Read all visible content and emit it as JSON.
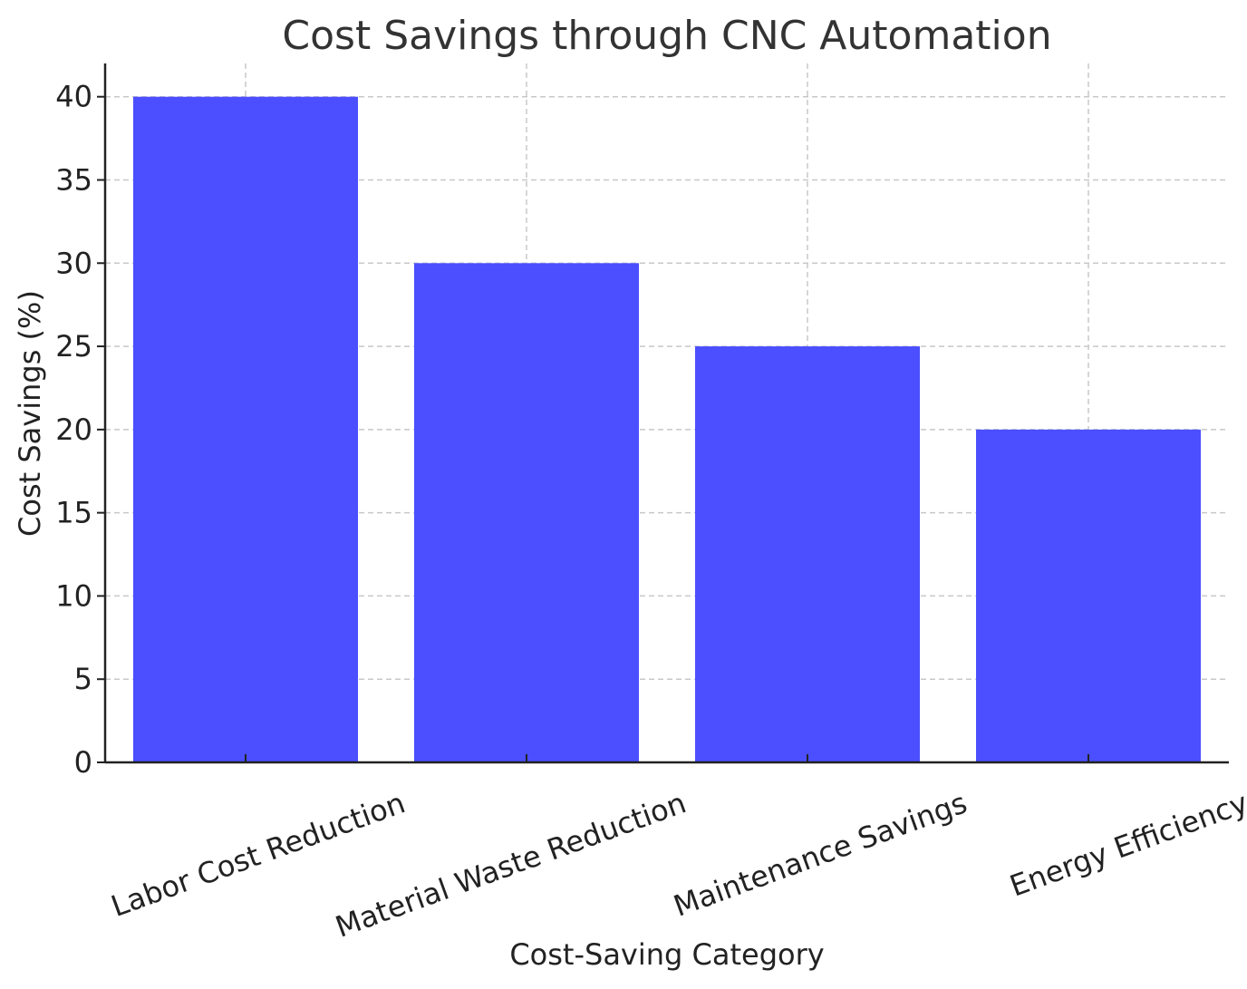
{
  "chart_data": {
    "type": "bar",
    "title": "Cost Savings through CNC Automation",
    "xlabel": "Cost-Saving Category",
    "ylabel": "Cost Savings (%)",
    "categories": [
      "Labor Cost Reduction",
      "Material Waste Reduction",
      "Maintenance Savings",
      "Energy Efficiency"
    ],
    "values": [
      40,
      30,
      25,
      20
    ],
    "ylim": [
      0,
      42
    ],
    "yticks": [
      0,
      5,
      10,
      15,
      20,
      25,
      30,
      35,
      40
    ],
    "bar_color": "#4b4fff",
    "grid": true,
    "legend": "none"
  }
}
